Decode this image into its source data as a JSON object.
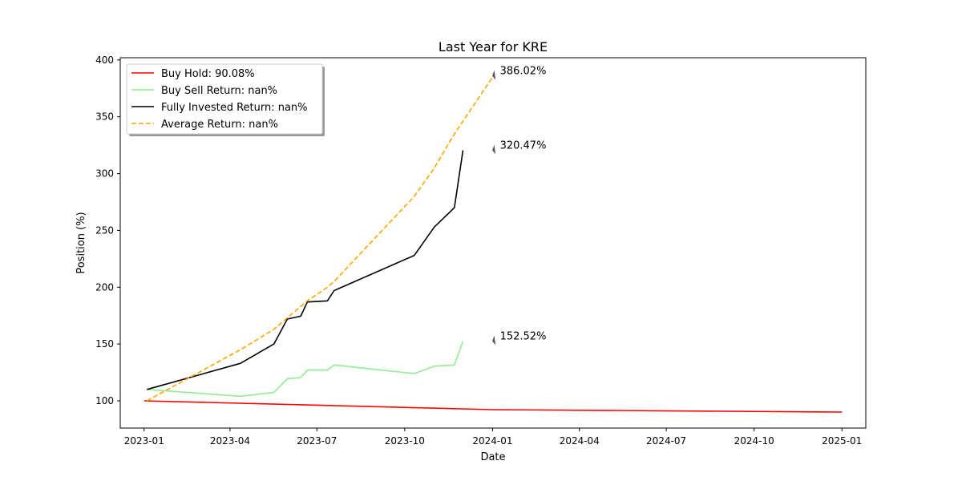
{
  "chart_data": {
    "type": "line",
    "title": "Last Year for KRE",
    "xlabel": "Date",
    "ylabel": "Position (%)",
    "xlim": [
      "2022-12-07",
      "2025-01-26"
    ],
    "ylim": [
      76,
      402
    ],
    "x_ticks": [
      "2023-01",
      "2023-04",
      "2023-07",
      "2023-10",
      "2024-01",
      "2024-04",
      "2024-07",
      "2024-10",
      "2025-01"
    ],
    "y_ticks": [
      100,
      150,
      200,
      250,
      300,
      350,
      400
    ],
    "grid": false,
    "legend_position": "top-left",
    "series": [
      {
        "name": "Buy Hold: 90.08%",
        "color": "#ff0000",
        "style": "solid",
        "points": [
          [
            "2023-01-01",
            100
          ],
          [
            "2024-01-02",
            92.2
          ],
          [
            "2025-01-01",
            90.08
          ]
        ]
      },
      {
        "name": "Buy Sell Return: nan%",
        "color": "#90ee90",
        "style": "solid",
        "points": [
          [
            "2023-01-04",
            110
          ],
          [
            "2023-04-12",
            104
          ],
          [
            "2023-05-17",
            107.5
          ],
          [
            "2023-05-31",
            119.5
          ],
          [
            "2023-06-14",
            120.5
          ],
          [
            "2023-06-21",
            127
          ],
          [
            "2023-07-12",
            127
          ],
          [
            "2023-07-19",
            131.5
          ],
          [
            "2023-10-11",
            124
          ],
          [
            "2023-11-01",
            130.5
          ],
          [
            "2023-11-22",
            131.5
          ],
          [
            "2023-12-01",
            152.52
          ]
        ]
      },
      {
        "name": "Fully Invested Return: nan%",
        "color": "#000000",
        "style": "solid",
        "points": [
          [
            "2023-01-04",
            110
          ],
          [
            "2023-04-12",
            133
          ],
          [
            "2023-05-17",
            150
          ],
          [
            "2023-05-31",
            172
          ],
          [
            "2023-06-14",
            174.5
          ],
          [
            "2023-06-21",
            187
          ],
          [
            "2023-07-12",
            188
          ],
          [
            "2023-07-19",
            197
          ],
          [
            "2023-10-11",
            228
          ],
          [
            "2023-11-01",
            253
          ],
          [
            "2023-11-22",
            270
          ],
          [
            "2023-12-01",
            320.47
          ]
        ]
      },
      {
        "name": "Average Return: nan%",
        "color": "#ffa500",
        "style": "dashed",
        "points": [
          [
            "2023-01-04",
            100
          ],
          [
            "2023-04-12",
            145
          ],
          [
            "2023-05-17",
            163
          ],
          [
            "2023-05-31",
            173
          ],
          [
            "2023-06-14",
            183
          ],
          [
            "2023-06-21",
            188
          ],
          [
            "2023-07-12",
            200
          ],
          [
            "2023-07-19",
            205
          ],
          [
            "2023-10-11",
            280
          ],
          [
            "2023-11-01",
            305
          ],
          [
            "2023-11-22",
            335
          ],
          [
            "2024-01-02",
            386.02
          ]
        ]
      }
    ],
    "annotations": [
      {
        "text": "386.02%",
        "x": "2024-01-02",
        "y": 386.02
      },
      {
        "text": "320.47%",
        "x": "2024-01-02",
        "y": 320.47
      },
      {
        "text": "152.52%",
        "x": "2024-01-02",
        "y": 152.52
      }
    ]
  }
}
